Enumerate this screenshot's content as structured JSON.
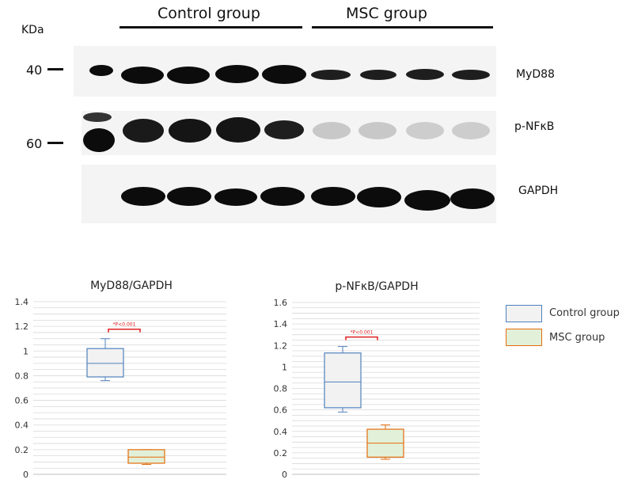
{
  "blot": {
    "kda_label": "KDa",
    "group_headers": [
      "Control group",
      "MSC group"
    ],
    "markers": [
      "40",
      "60"
    ],
    "band_labels": [
      "MyD88",
      "p-NFκB",
      "GAPDH"
    ]
  },
  "colors": {
    "control_stroke": "#4f81bd",
    "control_fill": "#f2f2f2",
    "msc_stroke": "#e46c0a",
    "msc_fill": "#e2f0d9",
    "significance": "#e02020",
    "gridline": "#d9d9d9"
  },
  "legend": [
    "Control group",
    "MSC group"
  ],
  "chart_data": [
    {
      "type": "box",
      "title": "MyD88/GAPDH",
      "ylim": [
        0,
        1.4
      ],
      "ytick_step": 0.2,
      "yticks": [
        "0",
        "0.2",
        "0.4",
        "0.6",
        "0.8",
        "1",
        "1.2",
        "1.4"
      ],
      "grid": true,
      "annotation": "*P<0.001",
      "series": [
        {
          "name": "Control group",
          "min": 0.76,
          "q1": 0.79,
          "median": 0.9,
          "q3": 1.02,
          "max": 1.1
        },
        {
          "name": "MSC group",
          "min": 0.08,
          "q1": 0.09,
          "median": 0.14,
          "q3": 0.2,
          "max": 0.2
        }
      ]
    },
    {
      "type": "box",
      "title": "p-NFκB/GAPDH",
      "ylim": [
        0,
        1.6
      ],
      "ytick_step": 0.2,
      "yticks": [
        "0",
        "0.2",
        "0.4",
        "0.6",
        "0.8",
        "1",
        "1.2",
        "1.4",
        "1.6"
      ],
      "grid": true,
      "annotation": "*P<0.001",
      "series": [
        {
          "name": "Control group",
          "min": 0.58,
          "q1": 0.62,
          "median": 0.86,
          "q3": 1.13,
          "max": 1.19
        },
        {
          "name": "MSC group",
          "min": 0.14,
          "q1": 0.16,
          "median": 0.29,
          "q3": 0.42,
          "max": 0.46
        }
      ]
    }
  ]
}
